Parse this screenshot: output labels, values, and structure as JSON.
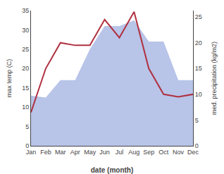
{
  "chart_data": {
    "type": "line",
    "categories": [
      "Jan",
      "Feb",
      "Mar",
      "Apr",
      "May",
      "Jun",
      "Jul",
      "Aug",
      "Sep",
      "Oct",
      "Nov",
      "Dec"
    ],
    "series": [
      {
        "type": "area",
        "color": "#b8c4e8",
        "values": [
          13,
          12.5,
          17,
          17,
          25,
          31,
          31,
          32.5,
          27,
          27,
          17,
          17
        ]
      },
      {
        "type": "line",
        "color": "#b03040",
        "axis": "y2",
        "values": [
          6.5,
          15,
          20,
          19.5,
          19.5,
          24.5,
          21,
          26,
          15,
          10,
          9.5,
          10
        ]
      }
    ],
    "xlabel": "date (month)",
    "ylabel": "max temp (C)",
    "y2label": "med. precipitation (kg/m2)",
    "ylim": [
      0,
      35
    ],
    "yticks": [
      0,
      5,
      10,
      15,
      20,
      25,
      30,
      35
    ],
    "y2lim": [
      0,
      26.25
    ],
    "y2ticks": [
      0,
      5,
      10,
      15,
      20,
      25
    ],
    "grid": false
  }
}
